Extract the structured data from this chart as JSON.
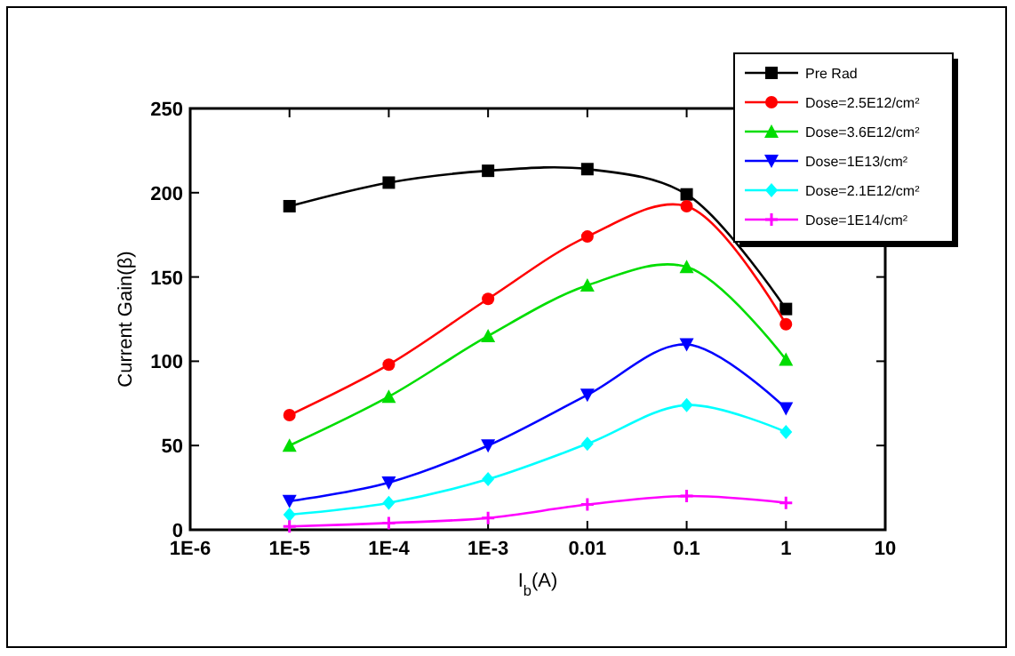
{
  "chart_data": {
    "type": "line",
    "xlabel": "I$_{b}$(A)",
    "ylabel": "Current Gain(β)",
    "log": "x",
    "x": [
      1e-05,
      0.0001,
      0.001,
      0.01,
      0.1,
      1
    ],
    "xlim": [
      1e-06,
      10
    ],
    "xticks": [
      {
        "value": 1e-06,
        "label": "1E-6"
      },
      {
        "value": 1e-05,
        "label": "1E-5"
      },
      {
        "value": 0.0001,
        "label": "1E-4"
      },
      {
        "value": 0.001,
        "label": "1E-3"
      },
      0.01,
      0.1,
      1,
      10
    ],
    "ylim": [
      0,
      250
    ],
    "yticks": [
      0,
      50,
      100,
      150,
      200,
      250
    ],
    "grid": false,
    "legend": "top right",
    "line_style": "solid",
    "series": [
      {
        "name": "Pre Rad",
        "color": "#000000",
        "marker": "square",
        "values": [
          192,
          206,
          213,
          214,
          199,
          131
        ]
      },
      {
        "name": "Dose=2.5E12/cm²",
        "color": "#ff0000",
        "marker": "circle",
        "values": [
          68,
          98,
          137,
          174,
          192,
          122
        ]
      },
      {
        "name": "Dose=3.6E12/cm²",
        "color": "#00dd00",
        "marker": "triangle",
        "values": [
          50,
          79,
          115,
          145,
          156,
          101
        ]
      },
      {
        "name": "Dose=1E13/cm²",
        "color": "#0000ff",
        "marker": "triangle-down",
        "values": [
          17,
          28,
          50,
          80,
          110,
          72
        ]
      },
      {
        "name": "Dose=2.1E12/cm²",
        "color": "#00ffff",
        "marker": "diamond",
        "values": [
          9,
          16,
          30,
          51,
          74,
          58
        ]
      },
      {
        "name": "Dose=1E14/cm²",
        "color": "#ff00ff",
        "marker": "cross",
        "values": [
          2,
          4,
          7,
          15,
          20,
          16
        ]
      }
    ]
  }
}
